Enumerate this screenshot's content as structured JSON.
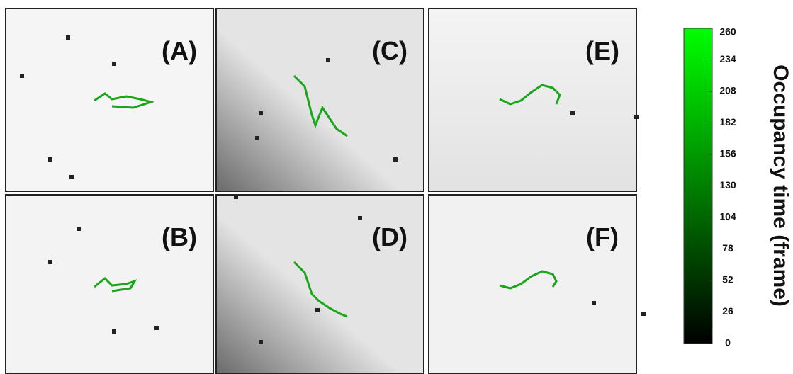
{
  "panels": [
    {
      "label": "(A)"
    },
    {
      "label": "(B)"
    },
    {
      "label": "(C)"
    },
    {
      "label": "(D)"
    },
    {
      "label": "(E)"
    },
    {
      "label": "(F)"
    }
  ],
  "colorbar": {
    "label": "Occupancy time (frame)",
    "lim": [
      0,
      260
    ],
    "ticks": [
      0,
      26,
      52,
      78,
      104,
      130,
      156,
      182,
      208,
      234,
      260
    ],
    "colors": [
      "#000000",
      "#00ff00"
    ]
  }
}
